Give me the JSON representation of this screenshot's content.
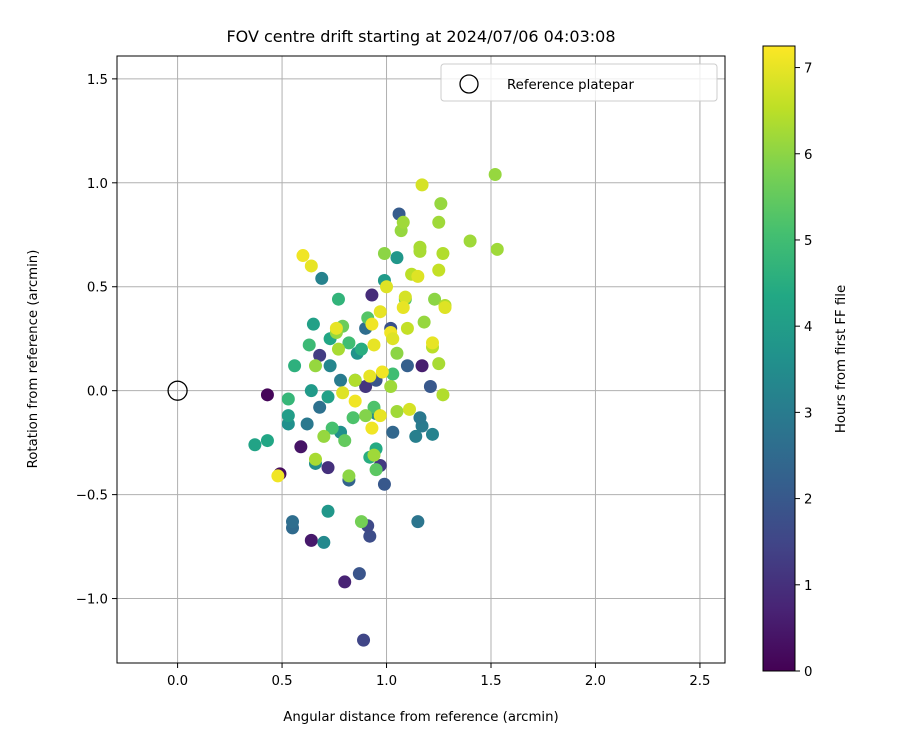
{
  "chart_data": {
    "type": "scatter",
    "title": "FOV centre drift starting at 2024/07/06 04:03:08",
    "xlabel": "Angular distance from reference (arcmin)",
    "ylabel": "Rotation from reference (arcmin)",
    "xlim": [
      -0.29,
      2.62
    ],
    "ylim": [
      -1.31,
      1.61
    ],
    "xticks": [
      0.0,
      0.5,
      1.0,
      1.5,
      2.0,
      2.5
    ],
    "xtick_labels": [
      "0.0",
      "0.5",
      "1.0",
      "1.5",
      "2.0",
      "2.5"
    ],
    "yticks": [
      -1.0,
      -0.5,
      0.0,
      0.5,
      1.0,
      1.5
    ],
    "ytick_labels": [
      "−1.0",
      "−0.5",
      "0.0",
      "0.5",
      "1.0",
      "1.5"
    ],
    "grid": true,
    "legend": {
      "placement": "top-right",
      "entries": [
        {
          "label": "Reference platepar",
          "marker": "open-circle"
        }
      ]
    },
    "colorbar": {
      "label": "Hours from first FF file",
      "colormap": "viridis",
      "range": [
        0,
        7.25
      ],
      "ticks": [
        0,
        1,
        2,
        3,
        4,
        5,
        6,
        7
      ],
      "tick_labels": [
        "0",
        "1",
        "2",
        "3",
        "4",
        "5",
        "6",
        "7"
      ]
    },
    "reference_point": {
      "x": 0.0,
      "y": 0.0
    },
    "points": [
      {
        "x": 0.43,
        "y": -0.02,
        "h": 0.1
      },
      {
        "x": 0.49,
        "y": -0.4,
        "h": 0.2
      },
      {
        "x": 0.59,
        "y": -0.27,
        "h": 0.4
      },
      {
        "x": 0.64,
        "y": -0.72,
        "h": 0.5
      },
      {
        "x": 0.8,
        "y": -0.92,
        "h": 0.7
      },
      {
        "x": 0.93,
        "y": 0.46,
        "h": 0.9
      },
      {
        "x": 1.17,
        "y": 0.12,
        "h": 0.6
      },
      {
        "x": 0.72,
        "y": -0.37,
        "h": 1.0
      },
      {
        "x": 0.97,
        "y": -0.36,
        "h": 1.2
      },
      {
        "x": 0.68,
        "y": 0.17,
        "h": 1.3
      },
      {
        "x": 0.9,
        "y": 0.02,
        "h": 1.1
      },
      {
        "x": 0.89,
        "y": -1.2,
        "h": 1.5
      },
      {
        "x": 0.92,
        "y": -0.7,
        "h": 1.7
      },
      {
        "x": 0.87,
        "y": -0.88,
        "h": 1.9
      },
      {
        "x": 0.91,
        "y": -0.65,
        "h": 1.6
      },
      {
        "x": 0.99,
        "y": -0.45,
        "h": 2.0
      },
      {
        "x": 1.06,
        "y": 0.85,
        "h": 2.1
      },
      {
        "x": 0.82,
        "y": -0.43,
        "h": 2.3
      },
      {
        "x": 1.21,
        "y": 0.02,
        "h": 2.0
      },
      {
        "x": 1.02,
        "y": 0.3,
        "h": 1.8
      },
      {
        "x": 1.1,
        "y": 0.12,
        "h": 2.2
      },
      {
        "x": 0.95,
        "y": 0.05,
        "h": 1.9
      },
      {
        "x": 1.03,
        "y": -0.2,
        "h": 2.4
      },
      {
        "x": 0.55,
        "y": -0.66,
        "h": 2.5
      },
      {
        "x": 0.55,
        "y": -0.63,
        "h": 2.6
      },
      {
        "x": 1.15,
        "y": -0.63,
        "h": 2.8
      },
      {
        "x": 0.9,
        "y": 0.3,
        "h": 2.6
      },
      {
        "x": 0.68,
        "y": -0.08,
        "h": 2.7
      },
      {
        "x": 0.62,
        "y": -0.16,
        "h": 2.9
      },
      {
        "x": 1.17,
        "y": -0.17,
        "h": 3.0
      },
      {
        "x": 1.14,
        "y": -0.22,
        "h": 3.1
      },
      {
        "x": 1.22,
        "y": -0.21,
        "h": 3.2
      },
      {
        "x": 0.69,
        "y": 0.54,
        "h": 3.2
      },
      {
        "x": 1.16,
        "y": -0.13,
        "h": 2.9
      },
      {
        "x": 0.73,
        "y": 0.12,
        "h": 3.3
      },
      {
        "x": 0.78,
        "y": 0.05,
        "h": 3.0
      },
      {
        "x": 0.95,
        "y": -0.11,
        "h": 3.4
      },
      {
        "x": 0.66,
        "y": -0.35,
        "h": 3.5
      },
      {
        "x": 0.53,
        "y": -0.16,
        "h": 3.6
      },
      {
        "x": 0.72,
        "y": -0.58,
        "h": 3.8
      },
      {
        "x": 0.7,
        "y": -0.73,
        "h": 3.4
      },
      {
        "x": 0.86,
        "y": 0.18,
        "h": 3.7
      },
      {
        "x": 0.64,
        "y": 0.0,
        "h": 3.9
      },
      {
        "x": 0.78,
        "y": -0.2,
        "h": 3.6
      },
      {
        "x": 1.05,
        "y": 0.64,
        "h": 3.8
      },
      {
        "x": 0.99,
        "y": 0.53,
        "h": 3.9
      },
      {
        "x": 0.65,
        "y": 0.32,
        "h": 4.1
      },
      {
        "x": 0.53,
        "y": -0.12,
        "h": 4.0
      },
      {
        "x": 0.37,
        "y": -0.26,
        "h": 4.2
      },
      {
        "x": 0.43,
        "y": -0.24,
        "h": 4.3
      },
      {
        "x": 0.72,
        "y": -0.03,
        "h": 4.1
      },
      {
        "x": 0.85,
        "y": 0.05,
        "h": 4.2
      },
      {
        "x": 0.92,
        "y": -0.32,
        "h": 4.5
      },
      {
        "x": 0.95,
        "y": -0.28,
        "h": 4.4
      },
      {
        "x": 0.73,
        "y": 0.25,
        "h": 4.3
      },
      {
        "x": 0.77,
        "y": 0.44,
        "h": 4.7
      },
      {
        "x": 0.56,
        "y": 0.12,
        "h": 4.6
      },
      {
        "x": 0.53,
        "y": -0.04,
        "h": 4.8
      },
      {
        "x": 0.88,
        "y": 0.2,
        "h": 4.5
      },
      {
        "x": 0.63,
        "y": 0.22,
        "h": 4.9
      },
      {
        "x": 0.82,
        "y": 0.23,
        "h": 5.0
      },
      {
        "x": 0.74,
        "y": -0.18,
        "h": 5.1
      },
      {
        "x": 0.94,
        "y": -0.08,
        "h": 5.2
      },
      {
        "x": 1.03,
        "y": 0.08,
        "h": 5.0
      },
      {
        "x": 1.09,
        "y": 0.44,
        "h": 5.3
      },
      {
        "x": 0.84,
        "y": -0.13,
        "h": 5.2
      },
      {
        "x": 0.95,
        "y": -0.38,
        "h": 5.4
      },
      {
        "x": 0.88,
        "y": -0.63,
        "h": 5.7
      },
      {
        "x": 0.8,
        "y": -0.24,
        "h": 5.5
      },
      {
        "x": 0.91,
        "y": 0.35,
        "h": 5.3
      },
      {
        "x": 0.79,
        "y": 0.31,
        "h": 5.6
      },
      {
        "x": 0.99,
        "y": 0.66,
        "h": 6.0
      },
      {
        "x": 1.07,
        "y": 0.77,
        "h": 6.1
      },
      {
        "x": 1.08,
        "y": 0.81,
        "h": 6.2
      },
      {
        "x": 1.16,
        "y": 0.69,
        "h": 6.3
      },
      {
        "x": 1.16,
        "y": 0.67,
        "h": 6.3
      },
      {
        "x": 1.25,
        "y": 0.81,
        "h": 6.2
      },
      {
        "x": 1.26,
        "y": 0.9,
        "h": 6.1
      },
      {
        "x": 1.4,
        "y": 0.72,
        "h": 6.2
      },
      {
        "x": 1.52,
        "y": 1.04,
        "h": 6.1
      },
      {
        "x": 1.53,
        "y": 0.68,
        "h": 6.2
      },
      {
        "x": 1.27,
        "y": 0.66,
        "h": 6.4
      },
      {
        "x": 1.25,
        "y": 0.58,
        "h": 6.6
      },
      {
        "x": 1.23,
        "y": 0.44,
        "h": 6.0
      },
      {
        "x": 1.28,
        "y": 0.41,
        "h": 6.4
      },
      {
        "x": 1.25,
        "y": 0.13,
        "h": 6.3
      },
      {
        "x": 1.27,
        "y": -0.02,
        "h": 6.4
      },
      {
        "x": 1.22,
        "y": 0.21,
        "h": 6.5
      },
      {
        "x": 1.1,
        "y": 0.3,
        "h": 6.6
      },
      {
        "x": 1.18,
        "y": 0.33,
        "h": 6.1
      },
      {
        "x": 0.82,
        "y": -0.41,
        "h": 6.0
      },
      {
        "x": 0.94,
        "y": -0.31,
        "h": 6.2
      },
      {
        "x": 0.7,
        "y": -0.22,
        "h": 6.1
      },
      {
        "x": 0.66,
        "y": -0.33,
        "h": 6.3
      },
      {
        "x": 0.9,
        "y": -0.12,
        "h": 5.9
      },
      {
        "x": 1.05,
        "y": -0.1,
        "h": 6.2
      },
      {
        "x": 0.66,
        "y": 0.12,
        "h": 6.1
      },
      {
        "x": 0.77,
        "y": 0.2,
        "h": 6.3
      },
      {
        "x": 0.85,
        "y": 0.05,
        "h": 6.4
      },
      {
        "x": 1.02,
        "y": 0.02,
        "h": 6.2
      },
      {
        "x": 1.05,
        "y": 0.18,
        "h": 6.0
      },
      {
        "x": 1.12,
        "y": 0.56,
        "h": 6.5
      },
      {
        "x": 0.76,
        "y": 0.28,
        "h": 6.1
      },
      {
        "x": 1.17,
        "y": 0.99,
        "h": 6.8
      },
      {
        "x": 0.6,
        "y": 0.65,
        "h": 7.1
      },
      {
        "x": 0.64,
        "y": 0.6,
        "h": 7.0
      },
      {
        "x": 1.0,
        "y": 0.5,
        "h": 6.9
      },
      {
        "x": 1.09,
        "y": 0.45,
        "h": 6.8
      },
      {
        "x": 1.15,
        "y": 0.55,
        "h": 6.9
      },
      {
        "x": 1.08,
        "y": 0.4,
        "h": 7.0
      },
      {
        "x": 1.28,
        "y": 0.4,
        "h": 6.9
      },
      {
        "x": 1.22,
        "y": 0.23,
        "h": 7.0
      },
      {
        "x": 1.02,
        "y": 0.28,
        "h": 7.1
      },
      {
        "x": 0.97,
        "y": 0.38,
        "h": 7.0
      },
      {
        "x": 0.93,
        "y": 0.32,
        "h": 7.1
      },
      {
        "x": 0.94,
        "y": 0.22,
        "h": 7.0
      },
      {
        "x": 0.98,
        "y": 0.09,
        "h": 7.1
      },
      {
        "x": 0.92,
        "y": 0.07,
        "h": 7.0
      },
      {
        "x": 0.76,
        "y": 0.3,
        "h": 7.0
      },
      {
        "x": 0.85,
        "y": -0.05,
        "h": 7.1
      },
      {
        "x": 0.97,
        "y": -0.12,
        "h": 7.0
      },
      {
        "x": 0.93,
        "y": -0.18,
        "h": 7.1
      },
      {
        "x": 0.79,
        "y": -0.01,
        "h": 6.9
      },
      {
        "x": 1.11,
        "y": -0.09,
        "h": 6.8
      },
      {
        "x": 1.03,
        "y": 0.25,
        "h": 6.9
      },
      {
        "x": 0.48,
        "y": -0.41,
        "h": 7.1
      }
    ]
  }
}
